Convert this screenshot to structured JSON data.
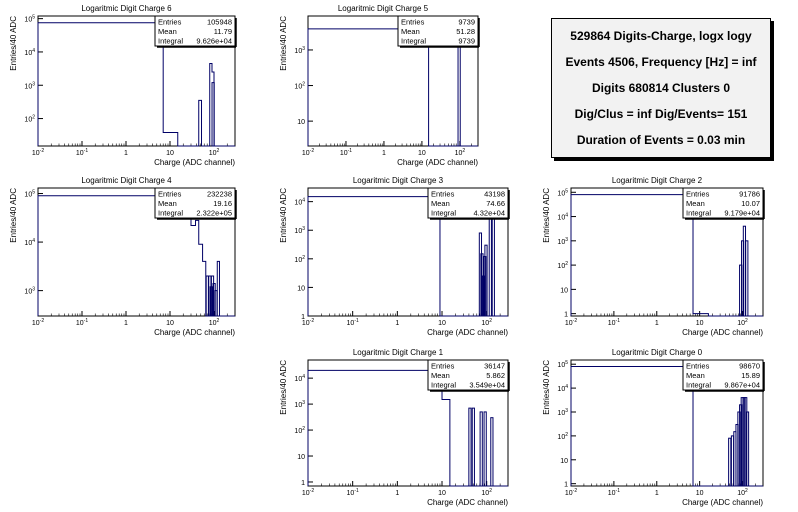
{
  "summary": {
    "lines": [
      "529864 Digits-Charge, logx logy",
      "Events 4506, Frequency [Hz] = inf",
      "Digits 680814 Clusters 0",
      "Dig/Clus = inf Dig/Events= 151",
      "Duration of Events = 0.03 min"
    ]
  },
  "colors": {
    "hist": "#000066",
    "frame": "#000000",
    "background": "#ffffff"
  },
  "chart_data": [
    {
      "id": "charge6",
      "type": "histogram",
      "title": "Logaritmic Digit Charge 6",
      "xlabel": "Charge (ADC channel)",
      "ylabel": "Entries/40 ADC",
      "xscale": "log",
      "yscale": "log",
      "xlim": [
        0.01,
        300
      ],
      "ylim": [
        15,
        120000
      ],
      "xticks": [
        "10^-2",
        "10^-1",
        "1",
        "10",
        "10^2"
      ],
      "yticks": [
        "10^2",
        "10^3",
        "10^4",
        "10^5"
      ],
      "stats": [
        [
          "Entries",
          "105948"
        ],
        [
          "Mean",
          "11.79"
        ],
        [
          "Integral",
          "9.626e+04"
        ]
      ],
      "bins": [
        [
          0.01,
          7,
          75000
        ],
        [
          7,
          15,
          38
        ],
        [
          15,
          45,
          0
        ],
        [
          45,
          52,
          350
        ],
        [
          52,
          80,
          0
        ],
        [
          80,
          90,
          4500
        ],
        [
          90,
          100,
          2500
        ],
        [
          100,
          300,
          0
        ]
      ],
      "spikes": [
        [
          95,
          1200
        ]
      ]
    },
    {
      "id": "charge5",
      "type": "histogram",
      "title": "Logaritmic Digit Charge 5",
      "xlabel": "Charge (ADC channel)",
      "ylabel": "Entries/40 ADC",
      "xscale": "log",
      "yscale": "log",
      "xlim": [
        0.01,
        300
      ],
      "ylim": [
        2,
        9000
      ],
      "xticks": [
        "10^-2",
        "10^-1",
        "1",
        "10",
        "10^2"
      ],
      "yticks": [
        "10",
        "10^2",
        "10^3"
      ],
      "stats": [
        [
          "Entries",
          "9739"
        ],
        [
          "Mean",
          "51.28"
        ],
        [
          "Integral",
          "9739"
        ]
      ],
      "bins": [
        [
          0.01,
          15,
          3900
        ],
        [
          15,
          300,
          0
        ]
      ],
      "spikes": [
        [
          95,
          2200
        ]
      ]
    },
    {
      "id": "charge4",
      "type": "histogram",
      "title": "Logaritmic Digit Charge 4",
      "xlabel": "Charge (ADC channel)",
      "ylabel": "Entries/40 ADC",
      "xscale": "log",
      "yscale": "log",
      "xlim": [
        0.01,
        300
      ],
      "ylim": [
        300,
        130000
      ],
      "xticks": [
        "10^-2",
        "10^-1",
        "1",
        "10",
        "10^2"
      ],
      "yticks": [
        "10^3",
        "10^4",
        "10^5"
      ],
      "stats": [
        [
          "Entries",
          "232238"
        ],
        [
          "Mean",
          "19.16"
        ],
        [
          "Integral",
          "2.322e+05"
        ]
      ],
      "bins": [
        [
          0.01,
          6,
          90000
        ],
        [
          6,
          20,
          32000
        ],
        [
          20,
          30,
          30000
        ],
        [
          30,
          38,
          22000
        ],
        [
          38,
          45,
          28000
        ],
        [
          45,
          55,
          9000
        ],
        [
          55,
          65,
          4000
        ],
        [
          65,
          300,
          0
        ]
      ],
      "spikes": [
        [
          70,
          2000
        ],
        [
          80,
          2000
        ],
        [
          86,
          1200
        ],
        [
          92,
          2000
        ],
        [
          100,
          1400
        ],
        [
          110,
          1000
        ],
        [
          125,
          4000
        ]
      ]
    },
    {
      "id": "charge3",
      "type": "histogram",
      "title": "Logaritmic Digit Charge 3",
      "xlabel": "Charge (ADC channel)",
      "ylabel": "Entries/40 ADC",
      "xscale": "log",
      "yscale": "log",
      "xlim": [
        0.01,
        300
      ],
      "ylim": [
        1,
        30000
      ],
      "xticks": [
        "10^-2",
        "10^-1",
        "1",
        "10",
        "10^2"
      ],
      "yticks": [
        "1",
        "10",
        "10^2",
        "10^3",
        "10^4"
      ],
      "stats": [
        [
          "Entries",
          "43198"
        ],
        [
          "Mean",
          "74.66"
        ],
        [
          "Integral",
          "4.32e+04"
        ]
      ],
      "bins": [
        [
          0.01,
          9,
          15000
        ],
        [
          9,
          300,
          0
        ]
      ],
      "spikes": [
        [
          72,
          800
        ],
        [
          78,
          150
        ],
        [
          84,
          25
        ],
        [
          90,
          120
        ],
        [
          96,
          300
        ],
        [
          120,
          15000
        ],
        [
          140,
          15000
        ]
      ]
    },
    {
      "id": "charge2",
      "type": "histogram",
      "title": "Logaritmic Digit Charge 2",
      "xlabel": "Charge (ADC channel)",
      "ylabel": "Entries/40 ADC",
      "xscale": "log",
      "yscale": "log",
      "xlim": [
        0.01,
        300
      ],
      "ylim": [
        0.8,
        150000
      ],
      "xticks": [
        "10^-2",
        "10^-1",
        "1",
        "10",
        "10^2"
      ],
      "yticks": [
        "1",
        "10",
        "10^2",
        "10^3",
        "10^4",
        "10^5"
      ],
      "stats": [
        [
          "Entries",
          "91786"
        ],
        [
          "Mean",
          "10.07"
        ],
        [
          "Integral",
          "9.179e+04"
        ]
      ],
      "bins": [
        [
          0.01,
          7,
          80000
        ],
        [
          7,
          16,
          1
        ],
        [
          16,
          300,
          0
        ]
      ],
      "spikes": [
        [
          90,
          100
        ],
        [
          100,
          1000
        ],
        [
          110,
          4000
        ],
        [
          125,
          1000
        ]
      ]
    },
    {
      "id": "charge1",
      "type": "histogram",
      "title": "Logaritmic Digit Charge 1",
      "xlabel": "Charge (ADC channel)",
      "ylabel": "Entries/40 ADC",
      "xscale": "log",
      "yscale": "log",
      "xlim": [
        0.01,
        300
      ],
      "ylim": [
        0.7,
        50000
      ],
      "xticks": [
        "10^-2",
        "10^-1",
        "1",
        "10",
        "10^2"
      ],
      "yticks": [
        "1",
        "10",
        "10^2",
        "10^3",
        "10^4"
      ],
      "stats": [
        [
          "Entries",
          "36147"
        ],
        [
          "Mean",
          "5.862"
        ],
        [
          "Integral",
          "3.549e+04"
        ]
      ],
      "bins": [
        [
          0.01,
          10,
          20000
        ],
        [
          10,
          15,
          1500
        ],
        [
          15,
          300,
          0
        ]
      ],
      "spikes": [
        [
          42,
          700
        ],
        [
          50,
          700
        ],
        [
          75,
          500
        ],
        [
          92,
          500
        ],
        [
          130,
          300
        ]
      ]
    },
    {
      "id": "charge0",
      "type": "histogram",
      "title": "Logaritmic Digit Charge 0",
      "xlabel": "Charge (ADC channel)",
      "ylabel": "Entries/40 ADC",
      "xscale": "log",
      "yscale": "log",
      "xlim": [
        0.01,
        300
      ],
      "ylim": [
        0.8,
        150000
      ],
      "xticks": [
        "10^-2",
        "10^-1",
        "1",
        "10",
        "10^2"
      ],
      "yticks": [
        "1",
        "10",
        "10^2",
        "10^3",
        "10^4",
        "10^5"
      ],
      "stats": [
        [
          "Entries",
          "98670"
        ],
        [
          "Mean",
          "15.89"
        ],
        [
          "Integral",
          "9.867e+04"
        ]
      ],
      "bins": [
        [
          0.01,
          7,
          80000
        ],
        [
          7,
          300,
          0
        ]
      ],
      "spikes": [
        [
          50,
          80
        ],
        [
          58,
          100
        ],
        [
          66,
          150
        ],
        [
          74,
          300
        ],
        [
          82,
          1000
        ],
        [
          90,
          2000
        ],
        [
          98,
          4000
        ],
        [
          108,
          4000
        ],
        [
          118,
          4000
        ],
        [
          130,
          1000
        ]
      ]
    }
  ]
}
